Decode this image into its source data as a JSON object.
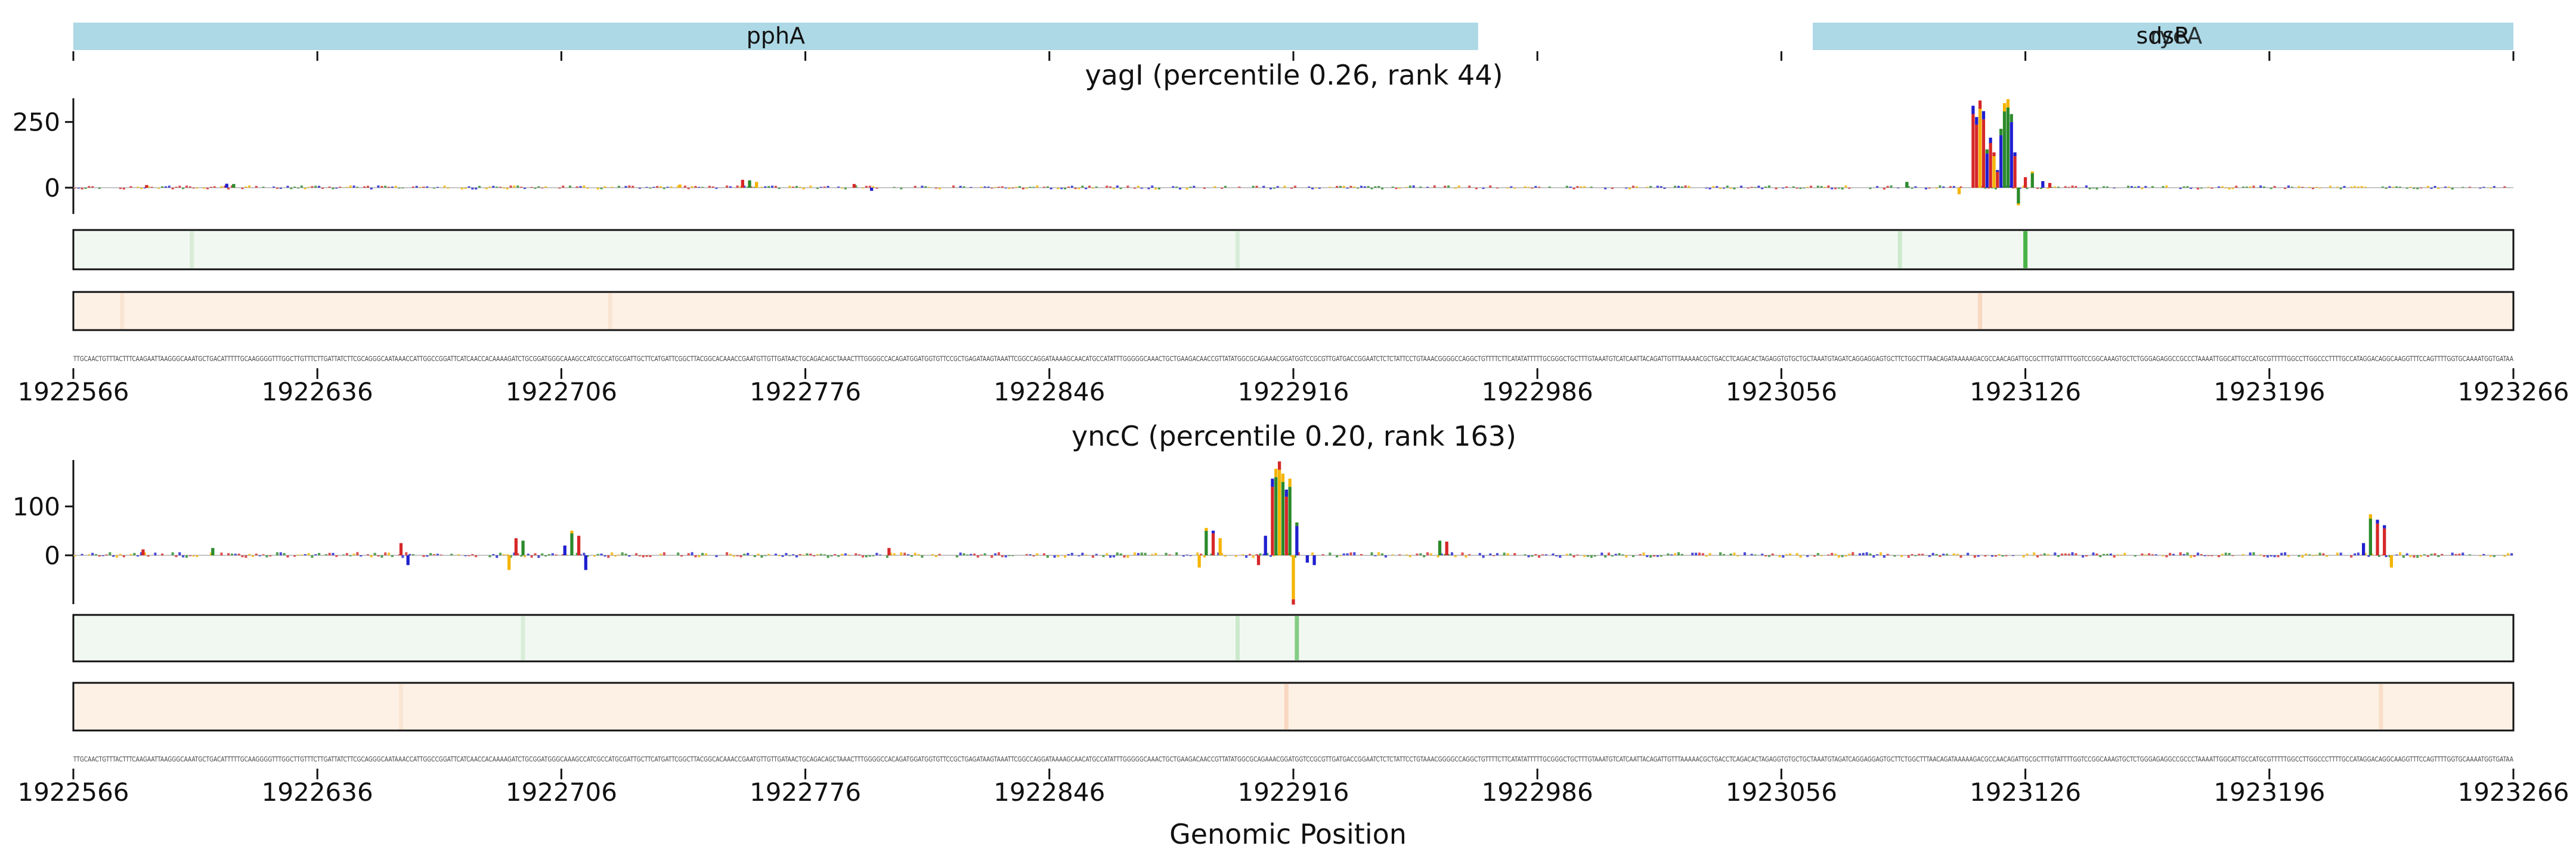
{
  "figure": {
    "xlabel": "Genomic Position"
  },
  "colors": {
    "gene_box": "#add8e6",
    "A": "#d62728",
    "C": "#1f1fcf",
    "G": "#2a8a2a",
    "T": "#f5b400",
    "track_green": "#f1f8f1",
    "track_orange": "#fdf1e6",
    "baseline": "#b0b0b0"
  },
  "genes": [
    {
      "label": "pphA",
      "start": 1922566,
      "end": 1922969
    },
    {
      "label": "sdsR",
      "start": 1923065,
      "end": 1923266
    },
    {
      "label": "ryeA",
      "start": 1923065,
      "end": 1923266
    }
  ],
  "sequence_text": "TTGCAACTGTTTACTTTCAAGAATTAAGGGCAAATGCTGACATTTTTGCAAGGGGTTTGGCTTGTTTCTTGATTATCTTCGCAGGGCAATAAACCATTGGCCGGATTCATCAACCACAAAAGATCTGCGGATGGGCAAAGCCATCGCCATGCGATTGCTTCATGATTCGGCTTACGGCACAAACCGAATGTTGTTGATAACTGCAGACAGCTAAACTTTGGGGCCACAGATGGATGGTGTTCCGCTGAGATAAGTAAATTCGGCCAGGATAAAAGCAACATGCCATATTTGGGGGCAAACTGCTGAAGACAACCGTTATATGGCGCAGAAACGGATGGTCCGCGTTGATGACCGGAATCTCTCTATTCCTGTAAACGGGGCCAGGCTGTTTTCTTCATATATTTTTGCGGGCTGCTTTGTAAATGTCATCAATTACAGATTGTTTAAAAACGCTGACCTCAGACACTAGAGGTGTGCTGCTAAATGTAGATCAGGAGGAGTGCTTCTGGCTTTAACAGATAAAAAGACGCCAACAGATTGCGCTTTGTATTTTGGTCCGGCAAAGTGCTCTGGGAGAGGCCGCCCTAAAATTGGCATTGCCATGCGTTTTTGGCCTTGGCCCTTTTGCCATAGGACAGGCAAGGTTTCCAGTTTTGGTGCAAAATGGTGATAA",
  "x_ticks": [
    1922566,
    1922636,
    1922706,
    1922776,
    1922846,
    1922916,
    1922986,
    1923056,
    1923126,
    1923196,
    1923266
  ],
  "chart_data": [
    {
      "type": "sequence-logo-track",
      "title": "yagI (percentile 0.26, rank 44)",
      "xlim": [
        1922566,
        1923266
      ],
      "ylim": [
        -100,
        340
      ],
      "y_ticks": [
        0,
        250
      ],
      "background": "low-amplitude attribution scores (|value| < 20) across the window",
      "series": [
        {
          "peaks": [
            {
              "x": 1923111,
              "value": 280,
              "base": "A"
            },
            {
              "x": 1923112,
              "value": 240,
              "base": "A"
            },
            {
              "x": 1923113,
              "value": 300,
              "base": "T"
            },
            {
              "x": 1923114,
              "value": 260,
              "base": "A"
            },
            {
              "x": 1923115,
              "value": 130,
              "base": "C"
            },
            {
              "x": 1923116,
              "value": 170,
              "base": "A"
            },
            {
              "x": 1923117,
              "value": 120,
              "base": "T"
            },
            {
              "x": 1923118,
              "value": 60,
              "base": "A"
            },
            {
              "x": 1923119,
              "value": 200,
              "base": "C"
            },
            {
              "x": 1923120,
              "value": 290,
              "base": "G"
            },
            {
              "x": 1923121,
              "value": 305,
              "base": "G"
            },
            {
              "x": 1923122,
              "value": 250,
              "base": "C"
            },
            {
              "x": 1923123,
              "value": 120,
              "base": "A"
            },
            {
              "x": 1923124,
              "value": -60,
              "base": "G"
            },
            {
              "x": 1923126,
              "value": 40,
              "base": "A"
            },
            {
              "x": 1923128,
              "value": 55,
              "base": "G"
            },
            {
              "x": 1923131,
              "value": 25,
              "base": "C"
            },
            {
              "x": 1923133,
              "value": 18,
              "base": "A"
            },
            {
              "x": 1923092,
              "value": 22,
              "base": "G"
            },
            {
              "x": 1923107,
              "value": -25,
              "base": "T"
            },
            {
              "x": 1922758,
              "value": 30,
              "base": "A"
            },
            {
              "x": 1922760,
              "value": 28,
              "base": "G"
            },
            {
              "x": 1922762,
              "value": 22,
              "base": "T"
            },
            {
              "x": 1922610,
              "value": 15,
              "base": "C"
            },
            {
              "x": 1922612,
              "value": 14,
              "base": "G"
            },
            {
              "x": 1922790,
              "value": 14,
              "base": "A"
            },
            {
              "x": 1922795,
              "value": -12,
              "base": "C"
            },
            {
              "x": 1922740,
              "value": 12,
              "base": "T"
            },
            {
              "x": 1922587,
              "value": 10,
              "base": "A"
            }
          ]
        }
      ],
      "heat_tracks": [
        {
          "name": "green-track",
          "color": "green",
          "highlights": [
            {
              "x": 1923126,
              "intensity": 0.7
            },
            {
              "x": 1923090,
              "intensity": 0.15
            },
            {
              "x": 1922600,
              "intensity": 0.1
            },
            {
              "x": 1922900,
              "intensity": 0.1
            }
          ]
        },
        {
          "name": "orange-track",
          "color": "orange",
          "highlights": [
            {
              "x": 1923113,
              "intensity": 0.2
            },
            {
              "x": 1922720,
              "intensity": 0.1
            },
            {
              "x": 1922580,
              "intensity": 0.1
            }
          ]
        }
      ]
    },
    {
      "type": "sequence-logo-track",
      "title": "yncC (percentile 0.20, rank 163)",
      "xlim": [
        1922566,
        1923266
      ],
      "ylim": [
        -100,
        195
      ],
      "y_ticks": [
        0,
        100
      ],
      "background": "low-amplitude attribution scores (|value| < 15) across the window",
      "series": [
        {
          "peaks": [
            {
              "x": 1922910,
              "value": 140,
              "base": "A"
            },
            {
              "x": 1922911,
              "value": 160,
              "base": "G"
            },
            {
              "x": 1922912,
              "value": 175,
              "base": "T"
            },
            {
              "x": 1922913,
              "value": 150,
              "base": "G"
            },
            {
              "x": 1922914,
              "value": 120,
              "base": "A"
            },
            {
              "x": 1922915,
              "value": 140,
              "base": "G"
            },
            {
              "x": 1922916,
              "value": -90,
              "base": "T"
            },
            {
              "x": 1922917,
              "value": 60,
              "base": "C"
            },
            {
              "x": 1922908,
              "value": 40,
              "base": "C"
            },
            {
              "x": 1922906,
              "value": -20,
              "base": "A"
            },
            {
              "x": 1922920,
              "value": -15,
              "base": "C"
            },
            {
              "x": 1922922,
              "value": -20,
              "base": "C"
            },
            {
              "x": 1922891,
              "value": 50,
              "base": "G"
            },
            {
              "x": 1922893,
              "value": 45,
              "base": "A"
            },
            {
              "x": 1922895,
              "value": 35,
              "base": "T"
            },
            {
              "x": 1922889,
              "value": -25,
              "base": "T"
            },
            {
              "x": 1922709,
              "value": 45,
              "base": "G"
            },
            {
              "x": 1922711,
              "value": 40,
              "base": "A"
            },
            {
              "x": 1922713,
              "value": -30,
              "base": "C"
            },
            {
              "x": 1922707,
              "value": 20,
              "base": "C"
            },
            {
              "x": 1922693,
              "value": 35,
              "base": "A"
            },
            {
              "x": 1922695,
              "value": 30,
              "base": "G"
            },
            {
              "x": 1922691,
              "value": -30,
              "base": "T"
            },
            {
              "x": 1922660,
              "value": 25,
              "base": "A"
            },
            {
              "x": 1922662,
              "value": -20,
              "base": "C"
            },
            {
              "x": 1923225,
              "value": 75,
              "base": "G"
            },
            {
              "x": 1923227,
              "value": 65,
              "base": "A"
            },
            {
              "x": 1923229,
              "value": 55,
              "base": "A"
            },
            {
              "x": 1923231,
              "value": -25,
              "base": "T"
            },
            {
              "x": 1923223,
              "value": 25,
              "base": "C"
            },
            {
              "x": 1922958,
              "value": 30,
              "base": "G"
            },
            {
              "x": 1922960,
              "value": 28,
              "base": "A"
            },
            {
              "x": 1922800,
              "value": 15,
              "base": "A"
            },
            {
              "x": 1922606,
              "value": 15,
              "base": "G"
            },
            {
              "x": 1922586,
              "value": 12,
              "base": "A"
            }
          ]
        }
      ],
      "heat_tracks": [
        {
          "name": "green-track",
          "color": "green",
          "highlights": [
            {
              "x": 1922917,
              "intensity": 0.45
            },
            {
              "x": 1922900,
              "intensity": 0.15
            },
            {
              "x": 1922695,
              "intensity": 0.1
            }
          ]
        },
        {
          "name": "orange-track",
          "color": "orange",
          "highlights": [
            {
              "x": 1922914,
              "intensity": 0.2
            },
            {
              "x": 1923228,
              "intensity": 0.15
            },
            {
              "x": 1922660,
              "intensity": 0.1
            }
          ]
        }
      ]
    }
  ]
}
